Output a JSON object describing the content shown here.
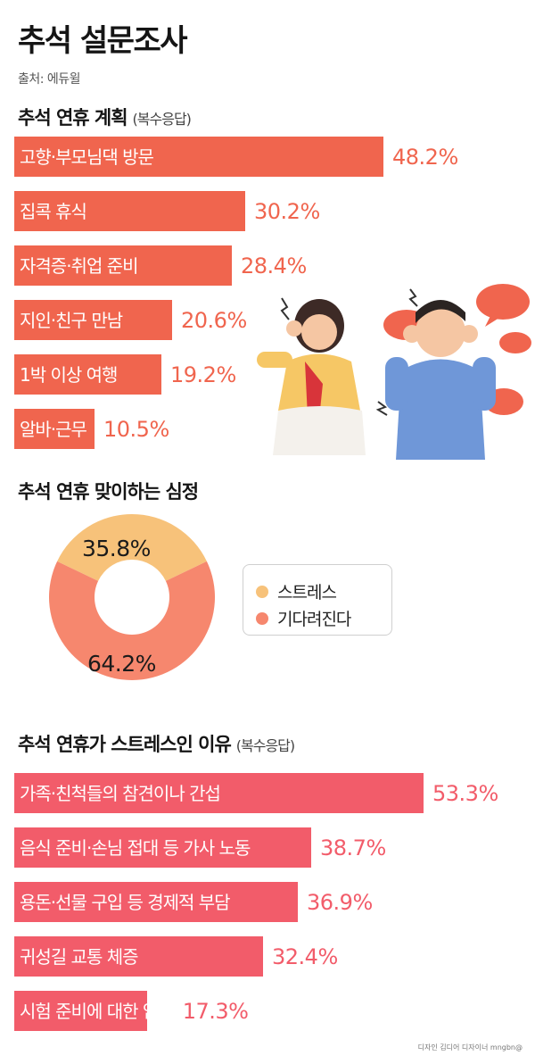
{
  "title": "추석 설문조사",
  "source": "출처: 에듀윌",
  "credit": "디자인 김디어 디자이너 mngbn@",
  "sections": {
    "plans": {
      "title": "추석 연휴 계획",
      "note": "(복수응답)"
    },
    "mood": {
      "title": "추석 연휴 맞이하는 심정"
    },
    "reasons": {
      "title": "추석 연휴가 스트레스인 이유",
      "note": "(복수응답)"
    }
  },
  "colors": {
    "plans_bar": "#f0654e",
    "plans_value": "#f0654e",
    "reasons_bar": "#f25c6a",
    "reasons_value": "#f25c6a",
    "donut_stress": "#f7c27a",
    "donut_expect": "#f6876e"
  },
  "chart_data": [
    {
      "type": "bar",
      "orientation": "horizontal",
      "categories": [
        "고향·부모님댁 방문",
        "집콕 휴식",
        "자격증·취업 준비",
        "지인·친구 만남",
        "1박 이상 여행",
        "알바·근무"
      ],
      "values": [
        48.2,
        30.2,
        28.4,
        20.6,
        19.2,
        10.5
      ],
      "value_labels": [
        "48.2%",
        "30.2%",
        "28.4%",
        "20.6%",
        "19.2%",
        "10.5%"
      ],
      "title": "추석 연휴 계획"
    },
    {
      "type": "pie",
      "variant": "donut",
      "title": "추석 연휴 맞이하는 심정",
      "categories": [
        "스트레스",
        "기다려진다"
      ],
      "values": [
        35.8,
        64.2
      ],
      "value_labels": [
        "35.8%",
        "64.2%"
      ],
      "legend_placement": "right"
    },
    {
      "type": "bar",
      "orientation": "horizontal",
      "categories": [
        "가족·친척들의 참견이나 간섭",
        "음식 준비·손님 접대 등 가사 노동",
        "용돈·선물 구입 등 경제적 부담",
        "귀성길 교통 체증",
        "시험 준비에 대한 압박"
      ],
      "values": [
        53.3,
        38.7,
        36.9,
        32.4,
        17.3
      ],
      "value_labels": [
        "53.3%",
        "38.7%",
        "36.9%",
        "32.4%",
        "17.3%"
      ],
      "title": "추석 연휴가 스트레스인 이유"
    }
  ]
}
